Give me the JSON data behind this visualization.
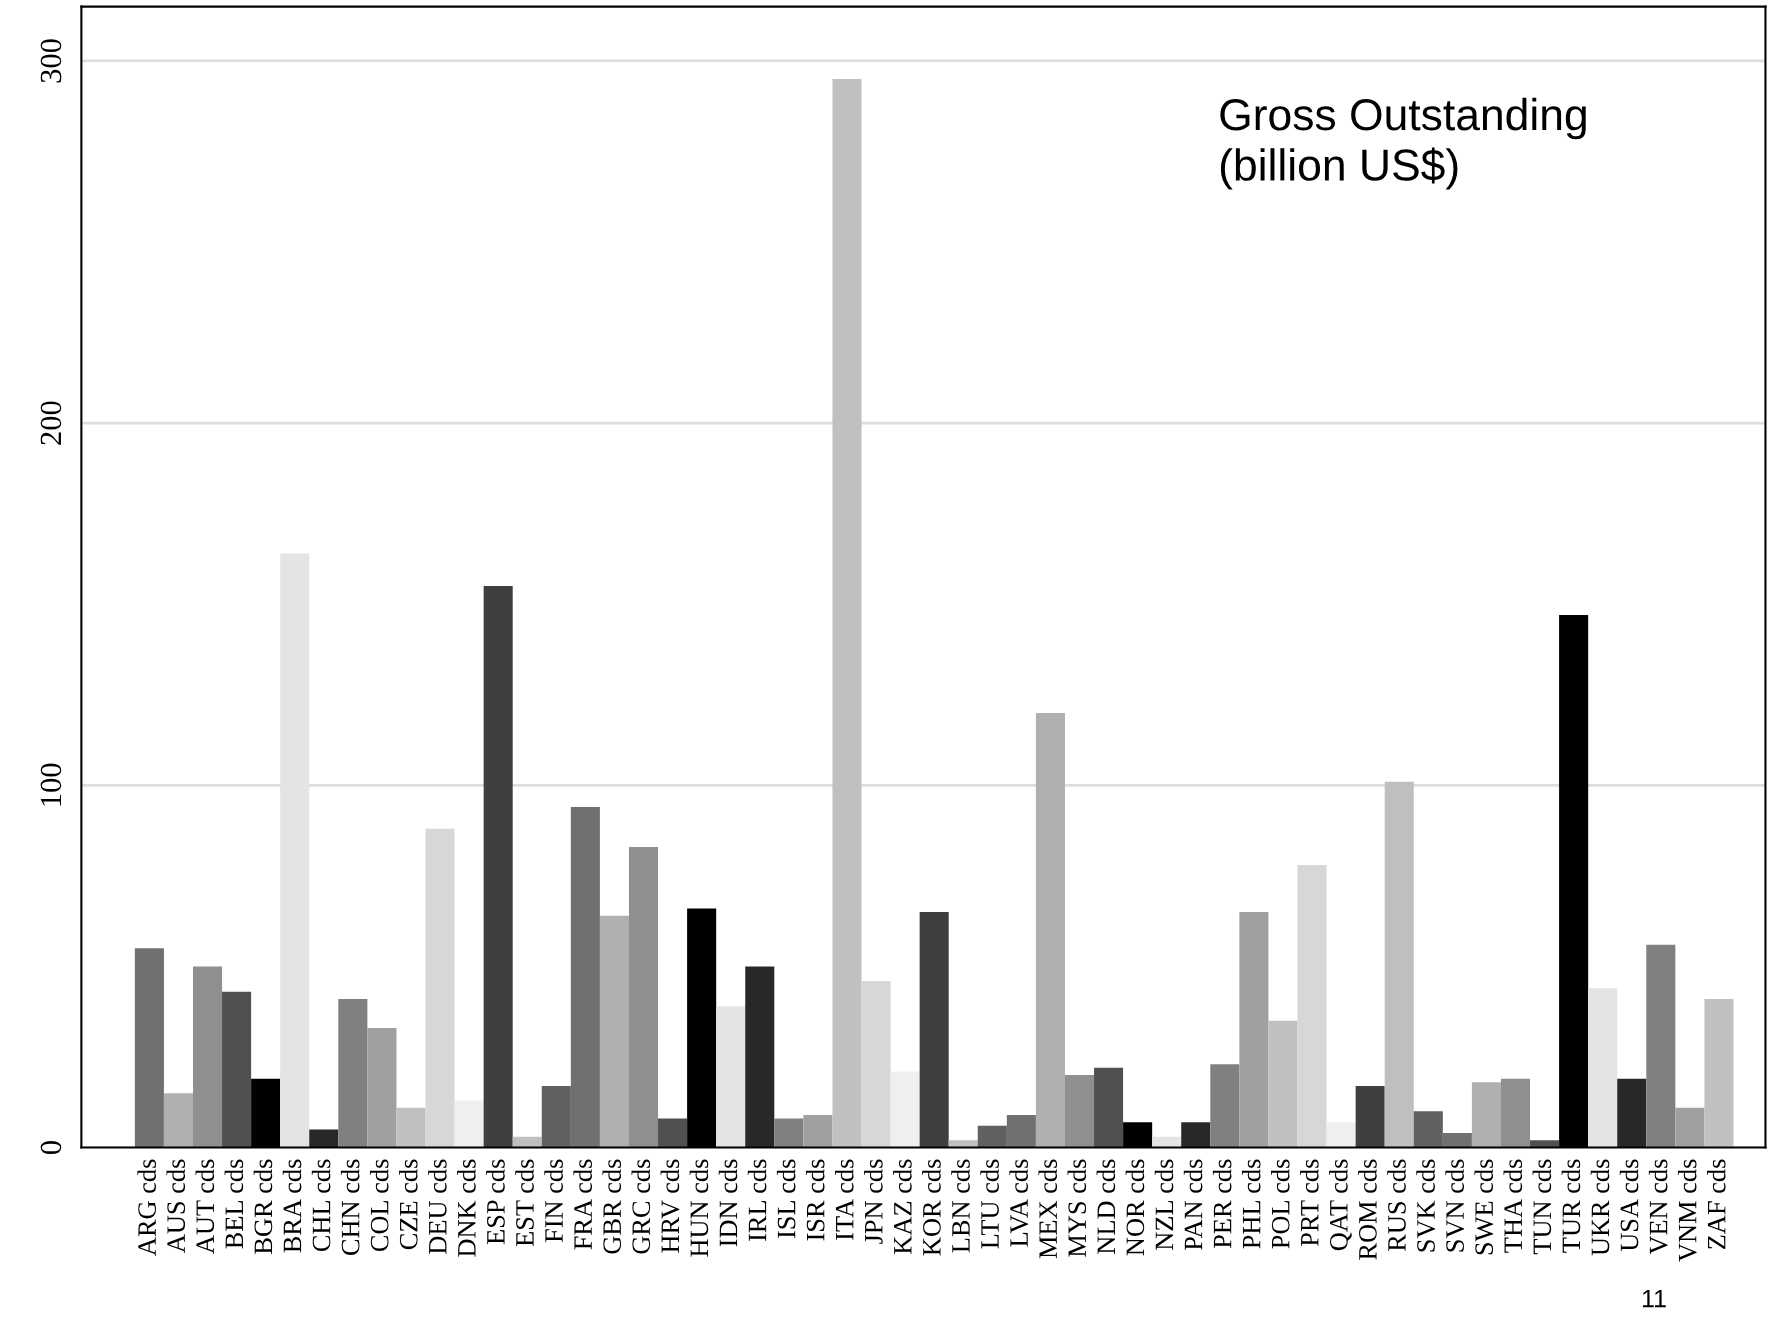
{
  "chart_data": {
    "type": "bar",
    "categories": [
      "ARG cds",
      "AUS cds",
      "AUT cds",
      "BEL cds",
      "BGR cds",
      "BRA cds",
      "CHL cds",
      "CHN cds",
      "COL cds",
      "CZE cds",
      "DEU cds",
      "DNK cds",
      "ESP cds",
      "EST cds",
      "FIN cds",
      "FRA cds",
      "GBR cds",
      "GRC cds",
      "HRV cds",
      "HUN cds",
      "IDN cds",
      "IRL cds",
      "ISL cds",
      "ISR cds",
      "ITA cds",
      "JPN cds",
      "KAZ cds",
      "KOR cds",
      "LBN cds",
      "LTU cds",
      "LVA cds",
      "MEX cds",
      "MYS cds",
      "NLD cds",
      "NOR cds",
      "NZL cds",
      "PAN cds",
      "PER cds",
      "PHL cds",
      "POL cds",
      "PRT cds",
      "QAT cds",
      "ROM cds",
      "RUS cds",
      "SVK cds",
      "SVN cds",
      "SWE cds",
      "THA cds",
      "TUN cds",
      "TUR cds",
      "UKR cds",
      "USA cds",
      "VEN cds",
      "VNM cds",
      "ZAF cds"
    ],
    "values": [
      55,
      15,
      50,
      43,
      19,
      164,
      5,
      41,
      33,
      11,
      88,
      13,
      155,
      3,
      17,
      94,
      64,
      83,
      8,
      66,
      39,
      50,
      8,
      9,
      295,
      46,
      21,
      65,
      2,
      6,
      9,
      120,
      20,
      22,
      7,
      3,
      7,
      23,
      65,
      35,
      78,
      7,
      17,
      101,
      10,
      4,
      18,
      19,
      2,
      147,
      44,
      19,
      56,
      11,
      41
    ],
    "colors": [
      "#707070",
      "#b0b0b0",
      "#8f8f8f",
      "#505050",
      "#000000",
      "#e4e4e4",
      "#282828",
      "#808080",
      "#a0a0a0",
      "#c0c0c0",
      "#d7d7d7",
      "#efefef",
      "#3f3f3f",
      "#bfbfbf",
      "#606060",
      "#707070",
      "#b0b0b0",
      "#8f8f8f",
      "#505050",
      "#000000",
      "#e4e4e4",
      "#282828",
      "#808080",
      "#a0a0a0",
      "#c0c0c0",
      "#d7d7d7",
      "#efefef",
      "#3f3f3f",
      "#bfbfbf",
      "#606060",
      "#707070",
      "#b0b0b0",
      "#8f8f8f",
      "#505050",
      "#000000",
      "#e4e4e4",
      "#282828",
      "#808080",
      "#a0a0a0",
      "#c0c0c0",
      "#d7d7d7",
      "#efefef",
      "#3f3f3f",
      "#bfbfbf",
      "#606060",
      "#707070",
      "#b0b0b0",
      "#8f8f8f",
      "#505050",
      "#000000",
      "#e4e4e4",
      "#282828",
      "#808080",
      "#a0a0a0",
      "#c0c0c0"
    ],
    "ylim": [
      0,
      315
    ],
    "yticks": [
      0,
      100,
      200,
      300
    ],
    "grid": "y",
    "annotations": [
      "Gross Outstanding\n(billion US$)",
      "11"
    ]
  }
}
